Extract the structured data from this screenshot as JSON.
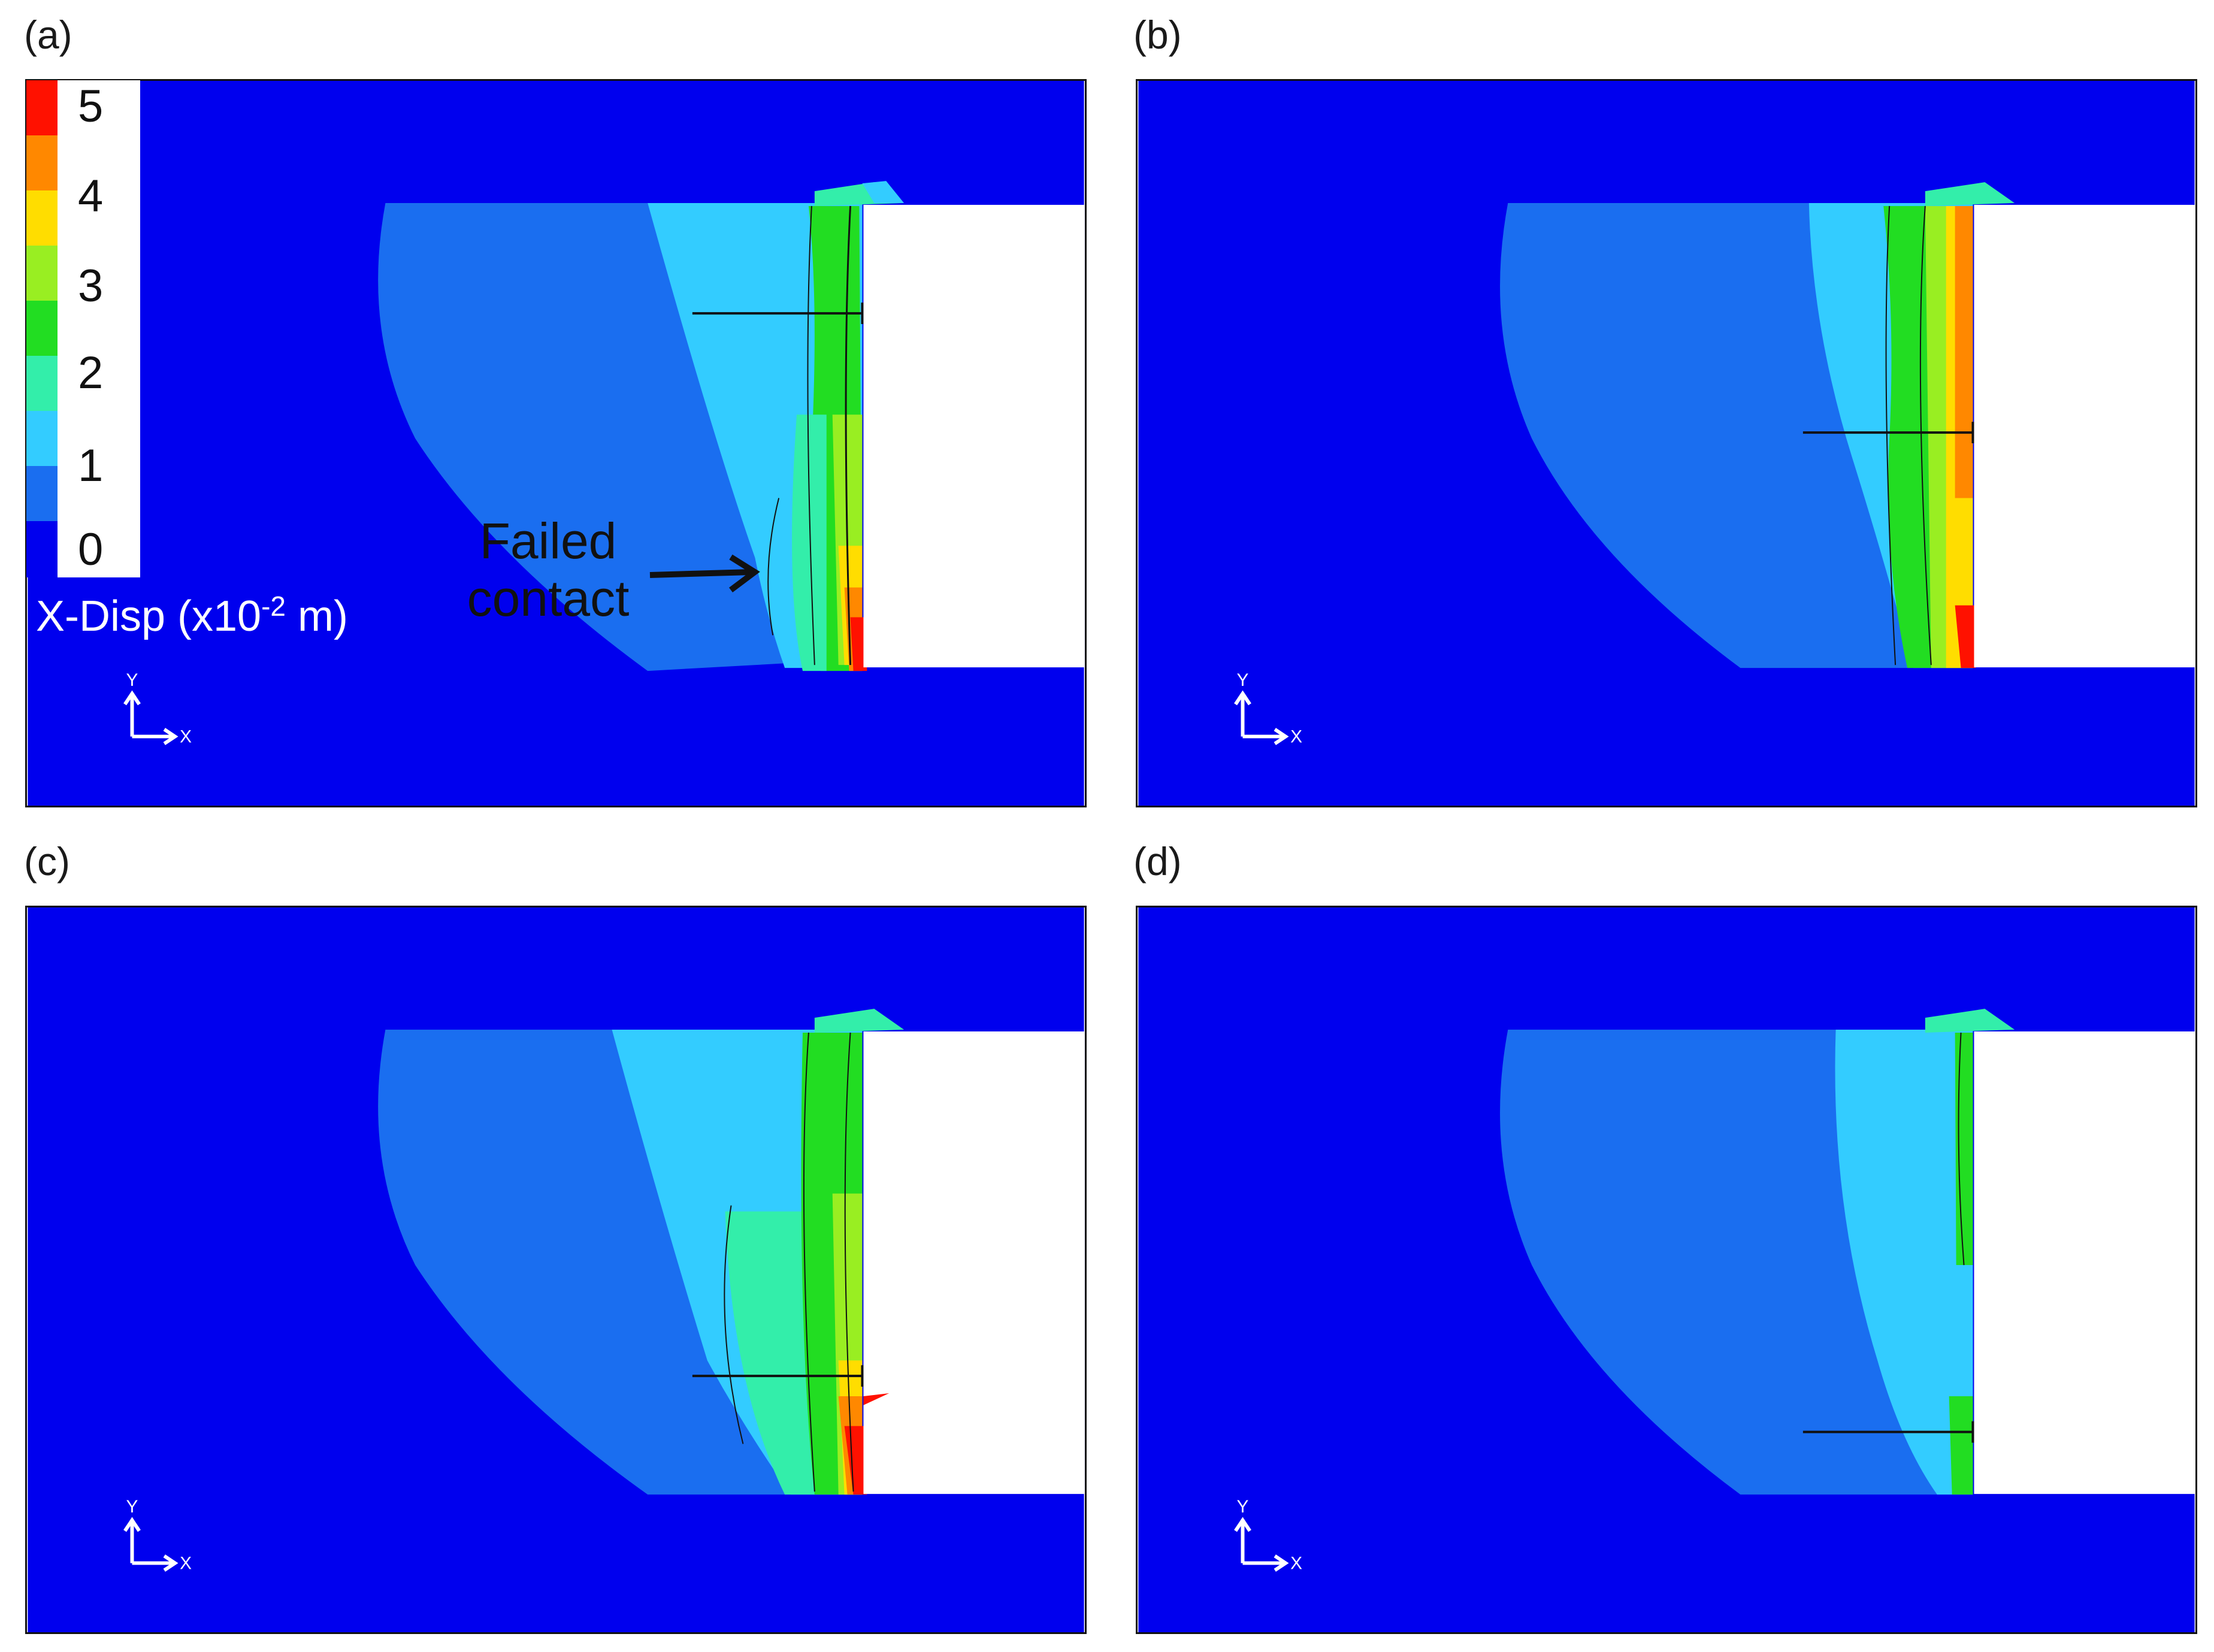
{
  "panels": [
    {
      "id": "a",
      "label": "(a)"
    },
    {
      "id": "b",
      "label": "(b)"
    },
    {
      "id": "c",
      "label": "(c)"
    },
    {
      "id": "d",
      "label": "(d)"
    }
  ],
  "legend": {
    "ticks": [
      "5",
      "4",
      "3",
      "2",
      "1",
      "0"
    ],
    "title_main": "X-Disp (x10",
    "title_sup": "-2",
    "title_unit": " m)",
    "colors": [
      "#0000ff",
      "#1a6ef0",
      "#33ccff",
      "#33eeaa",
      "#22dd22",
      "#99ee22",
      "#ffdd00",
      "#ff8800",
      "#ff1100"
    ]
  },
  "annotation": {
    "line1": "Failed",
    "line2": "contact"
  },
  "axes": {
    "x": "X",
    "y": "Y"
  },
  "colors": {
    "background_blue": "#0000ee",
    "zone_mid": "#1a6ef0",
    "zone_light": "#33ccff",
    "zone_aqua": "#33eeaa",
    "zone_green": "#22dd22",
    "zone_yellowgreen": "#99ee22",
    "zone_yellow": "#ffdd00",
    "zone_orange": "#ff8800",
    "zone_red": "#ff1100"
  }
}
